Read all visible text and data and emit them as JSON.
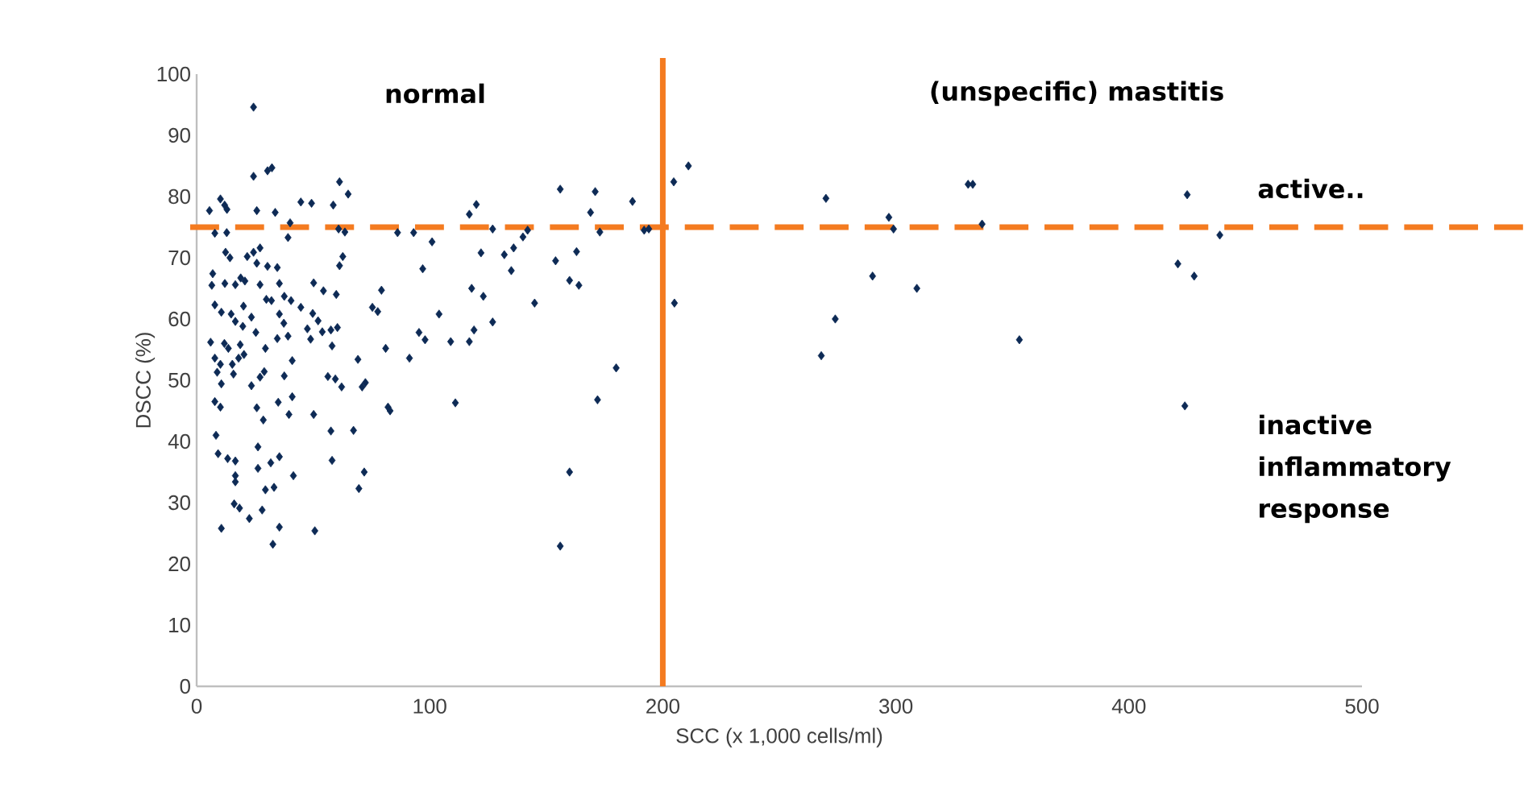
{
  "chart_data": {
    "type": "scatter",
    "xlabel": "SCC (x 1,000 cells/ml)",
    "ylabel": "DSCC (%)",
    "xlim": [
      0,
      500
    ],
    "ylim": [
      0,
      100
    ],
    "xticks": [
      0,
      100,
      200,
      300,
      400,
      500
    ],
    "yticks": [
      0,
      10,
      20,
      30,
      40,
      50,
      60,
      70,
      80,
      90,
      100
    ],
    "grid": false,
    "marker": "diamond",
    "ref_lines": [
      {
        "axis": "y",
        "value": 75,
        "color": "#f47b20",
        "line_style": "dashed"
      },
      {
        "axis": "x",
        "value": 200,
        "color": "#f47b20",
        "line_style": "solid"
      }
    ],
    "annotations": [
      "normal",
      "(unspecific) mastitis",
      "active..",
      "inactive inflammatory response"
    ],
    "series": [
      {
        "color": "#0d2a55",
        "x": [
          204.7,
          211,
          205,
          270,
          268,
          274,
          290,
          297,
          299,
          309,
          331,
          333,
          337,
          353,
          425,
          421,
          428,
          424,
          439,
          192,
          156,
          171,
          187,
          120,
          117,
          169,
          127,
          142,
          173,
          194,
          101,
          122,
          132,
          136,
          140,
          163,
          154,
          135,
          97,
          160,
          164,
          118,
          123,
          145,
          104,
          127,
          119,
          98,
          109,
          117,
          180,
          172,
          111,
          160,
          156,
          24.4,
          24.4,
          30.4,
          32.3,
          10.2,
          12,
          5.5,
          13,
          25.8,
          33.7,
          44.7,
          49.3,
          61.3,
          65,
          58.6,
          40.1,
          39.2,
          60.9,
          63.6,
          7.8,
          12.9,
          86.2,
          93.1,
          12.4,
          14.3,
          21.7,
          24.4,
          27.2,
          25.8,
          30.4,
          34.6,
          62.7,
          61.3,
          6.9,
          6.5,
          12.1,
          16.6,
          18.9,
          20.7,
          27.2,
          35.5,
          50.2,
          54.4,
          59.9,
          79.3,
          7.8,
          10.6,
          14.8,
          20.1,
          23.5,
          29.9,
          32.1,
          37.6,
          40.5,
          35.5,
          44.7,
          49.8,
          52.1,
          75.4,
          77.7,
          16.6,
          19.8,
          25.4,
          37.4,
          47.5,
          53.9,
          57.6,
          60.4,
          39.2,
          34.6,
          48.9,
          58.1,
          95.4,
          6,
          11.9,
          13.6,
          18.7,
          20.3,
          29.5,
          81.1,
          91.3,
          7.8,
          10.2,
          15.3,
          18,
          8.8,
          15.8,
          41,
          69.2,
          29,
          27.2,
          10.6,
          23.5,
          37.6,
          56.3,
          59.5,
          62.2,
          72.4,
          71,
          7.8,
          10.2,
          25.8,
          35,
          41,
          28.6,
          39.6,
          50.2,
          82.1,
          83,
          8.3,
          57.6,
          67.3,
          9.2,
          13.3,
          16.6,
          16.6,
          16.6,
          26.3,
          26.3,
          31.8,
          35.5,
          41.5,
          33.2,
          29.5,
          58.1,
          71.9,
          69.6,
          16.1,
          18.4,
          22.6,
          28.1,
          10.6,
          35.5,
          32.7,
          50.7
        ],
        "values": [
          82.4,
          85,
          62.6,
          79.7,
          54,
          60,
          67,
          76.6,
          74.7,
          65,
          82,
          82,
          75.5,
          56.6,
          80.3,
          69,
          67,
          45.8,
          73.7,
          74.5,
          81.2,
          80.8,
          79.2,
          78.7,
          77.1,
          77.4,
          74.7,
          74.5,
          74.2,
          74.7,
          72.6,
          70.8,
          70.5,
          71.6,
          73.4,
          71,
          69.5,
          67.9,
          68.2,
          66.3,
          65.5,
          65,
          63.7,
          62.6,
          60.8,
          59.5,
          58.2,
          56.6,
          56.3,
          56.3,
          52,
          46.8,
          46.3,
          35,
          22.9,
          94.6,
          83.3,
          84.2,
          84.7,
          79.6,
          78.6,
          77.7,
          77.9,
          77.7,
          77.4,
          79.1,
          78.9,
          82.4,
          80.4,
          78.6,
          75.7,
          73.3,
          74.7,
          74.2,
          74,
          74.1,
          74.1,
          74.1,
          70.9,
          70,
          70.2,
          70.9,
          71.6,
          69.1,
          68.6,
          68.4,
          70.2,
          68.7,
          67.4,
          65.5,
          65.8,
          65.6,
          66.7,
          66.2,
          65.6,
          65.8,
          65.9,
          64.6,
          64,
          64.7,
          62.3,
          61.1,
          60.8,
          62.1,
          60.3,
          63.2,
          63,
          63.7,
          63,
          60.8,
          61.9,
          60.9,
          59.7,
          61.9,
          61.2,
          59.6,
          58.8,
          57.8,
          59.3,
          58.4,
          57.9,
          58.2,
          58.6,
          57.2,
          56.8,
          56.7,
          55.6,
          57.8,
          56.2,
          56,
          55.2,
          55.8,
          54.2,
          55.2,
          55.2,
          53.6,
          53.6,
          52.6,
          52.6,
          53.6,
          51.3,
          51,
          53.2,
          53.4,
          51.4,
          50.5,
          49.4,
          49.1,
          50.7,
          50.6,
          50.2,
          48.9,
          49.6,
          48.9,
          46.5,
          45.6,
          45.5,
          46.4,
          47.3,
          43.5,
          44.4,
          44.4,
          45.6,
          45,
          41,
          41.7,
          41.8,
          38,
          37.2,
          36.8,
          34.4,
          33.4,
          39.1,
          35.6,
          36.5,
          37.5,
          34.4,
          32.5,
          32.1,
          36.9,
          35,
          32.3,
          29.8,
          29.1,
          27.4,
          28.8,
          25.8,
          26,
          23.2,
          25.4
        ]
      }
    ]
  }
}
